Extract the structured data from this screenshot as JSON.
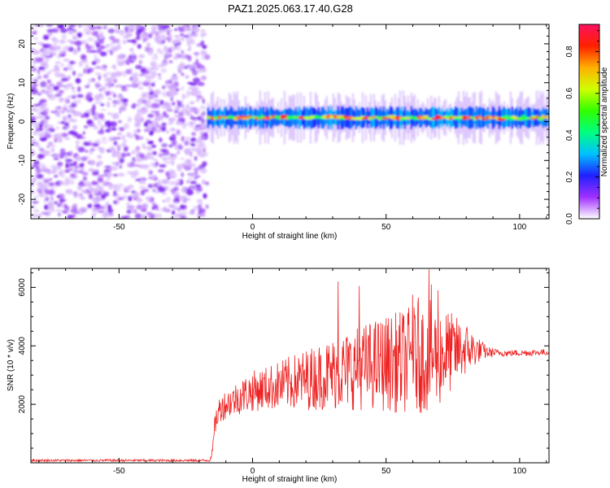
{
  "figure_title": "PAZ1.2025.063.17.40.G28",
  "chart_data": [
    {
      "type": "heatmap",
      "xlabel": "Height of straight line (km)",
      "ylabel": "Frequency (Hz)",
      "xlim": [
        -83,
        111
      ],
      "ylim": [
        -25,
        25
      ],
      "x_ticks": [
        -50,
        0,
        50,
        100
      ],
      "x_tick_labels": [
        "-50",
        "0",
        "50",
        "100"
      ],
      "y_ticks": [
        -20,
        -10,
        0,
        10,
        20
      ],
      "y_tick_labels": [
        "-20",
        "-10",
        "0",
        "10",
        "20"
      ],
      "noise_region_x": [
        -83,
        -17
      ],
      "signal_start_x": -17,
      "signal_line_frequency_hz": 1,
      "signal_band_halfwidth_hz": 2,
      "colormap": "hsv-rainbow",
      "colormap_stops": [
        "#ffffff",
        "#a030ff",
        "#2020ff",
        "#00c0ff",
        "#00ff80",
        "#30ff00",
        "#d0ff00",
        "#ffb000",
        "#ff2000",
        "#ff1060"
      ],
      "colorbar": {
        "label": "Normalized spectral amplitude",
        "range": [
          0,
          0.93
        ],
        "ticks": [
          0.0,
          0.2,
          0.4,
          0.6,
          0.8
        ],
        "tick_labels": [
          "0.0",
          "0.2",
          "0.4",
          "0.6",
          "0.8"
        ]
      },
      "grid": false,
      "legend": "none"
    },
    {
      "type": "line",
      "xlabel": "Height of straight line (km)",
      "ylabel": "SNR (10 * v/v)",
      "xlim": [
        -83,
        111
      ],
      "ylim": [
        0,
        6650
      ],
      "x_ticks": [
        -50,
        0,
        50,
        100
      ],
      "x_tick_labels": [
        "-50",
        "0",
        "50",
        "100"
      ],
      "y_ticks": [
        2000,
        4000,
        6000
      ],
      "y_tick_labels": [
        "2000",
        "4000",
        "6000"
      ],
      "line_color": "#ee2222",
      "grid": false,
      "legend": "none",
      "envelope": {
        "x": [
          -83,
          -16,
          -15,
          -14,
          -12,
          -10,
          -5,
          0,
          5,
          10,
          15,
          20,
          25,
          30,
          35,
          40,
          45,
          50,
          55,
          60,
          65,
          70,
          75,
          80,
          85,
          88,
          92,
          96,
          100,
          105,
          111
        ],
        "mean": [
          80,
          80,
          400,
          1400,
          1900,
          2000,
          2250,
          2450,
          2550,
          2650,
          2750,
          2850,
          2950,
          3050,
          3150,
          3250,
          3350,
          3400,
          3450,
          3550,
          3650,
          3700,
          3800,
          3900,
          3850,
          3780,
          3760,
          3750,
          3760,
          3770,
          3780
        ],
        "amp": [
          40,
          40,
          120,
          400,
          500,
          500,
          600,
          700,
          750,
          850,
          950,
          1050,
          1150,
          1250,
          1350,
          1450,
          1550,
          1650,
          1750,
          1850,
          1950,
          1800,
          1300,
          900,
          400,
          200,
          120,
          110,
          110,
          110,
          110
        ]
      },
      "spikes": [
        {
          "x": 32.0,
          "y": 6200
        },
        {
          "x": 40.0,
          "y": 6050
        },
        {
          "x": 66.0,
          "y": 6620
        },
        {
          "x": 67.0,
          "y": 6100
        },
        {
          "x": 69.5,
          "y": 5900
        },
        {
          "x": 60.0,
          "y": 5750
        },
        {
          "x": 62.0,
          "y": 5650
        }
      ]
    }
  ]
}
